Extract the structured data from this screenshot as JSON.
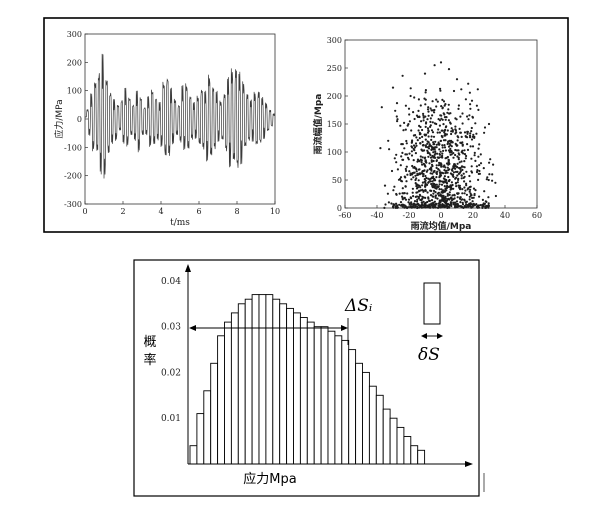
{
  "colors": {
    "frame": "#000000",
    "signal": "#3a3a3a",
    "points": "#1e1e1e",
    "bar_fill": "#ffffff",
    "bar_stroke": "#000000"
  },
  "chart_data": [
    {
      "type": "line",
      "title": "",
      "xlabel": "t/ms",
      "ylabel": "应力/MPa",
      "xlim": [
        0,
        10
      ],
      "ylim": [
        -300,
        300
      ],
      "xticks": [
        "0",
        "2",
        "4",
        "6",
        "8",
        "10"
      ],
      "yticks": [
        "300",
        "200",
        "100",
        "0",
        "-100",
        "-200",
        "-300"
      ],
      "series": [
        {
          "values_note_free": true,
          "x": [
            0.0,
            0.1,
            0.2,
            0.3,
            0.4,
            0.5,
            0.6,
            0.7,
            0.8,
            0.9,
            1.0,
            1.1,
            1.2,
            1.3,
            1.4,
            1.5,
            1.6,
            1.7,
            1.8,
            1.9,
            2.0,
            2.1,
            2.2,
            2.3,
            2.4,
            2.5,
            2.6,
            2.7,
            2.8,
            2.9,
            3.0,
            3.1,
            3.2,
            3.3,
            3.4,
            3.5,
            3.6,
            3.7,
            3.8,
            3.9,
            4.0,
            4.1,
            4.2,
            4.3,
            4.4,
            4.5,
            4.6,
            4.7,
            4.8,
            4.9,
            5.0,
            5.1,
            5.2,
            5.3,
            5.4,
            5.5,
            5.6,
            5.7,
            5.8,
            5.9,
            6.0,
            6.1,
            6.2,
            6.3,
            6.4,
            6.5,
            6.6,
            6.7,
            6.8,
            6.9,
            7.0,
            7.1,
            7.2,
            7.3,
            7.4,
            7.5,
            7.6,
            7.7,
            7.8,
            7.9,
            8.0,
            8.1,
            8.2,
            8.3,
            8.4,
            8.5,
            8.6,
            8.7,
            8.8,
            8.9,
            9.0,
            9.1,
            9.2,
            9.3,
            9.4,
            9.5,
            9.6,
            9.7,
            9.8,
            9.9
          ],
          "y": [
            10,
            40,
            -60,
            90,
            -120,
            160,
            -140,
            190,
            -200,
            230,
            -220,
            170,
            -150,
            110,
            -90,
            70,
            -80,
            60,
            -50,
            80,
            -90,
            110,
            -100,
            90,
            -70,
            60,
            -80,
            100,
            -120,
            90,
            -70,
            50,
            -60,
            80,
            -100,
            120,
            -110,
            90,
            -80,
            60,
            -100,
            150,
            -160,
            180,
            -140,
            110,
            -90,
            80,
            -70,
            60,
            -90,
            120,
            -110,
            140,
            -130,
            100,
            -80,
            60,
            -70,
            90,
            -110,
            130,
            -120,
            100,
            -150,
            170,
            -160,
            140,
            -120,
            100,
            -80,
            70,
            -90,
            110,
            -130,
            150,
            -170,
            190,
            -180,
            220,
            -200,
            170,
            -160,
            140,
            -120,
            110,
            -90,
            70,
            -80,
            100,
            -110,
            120,
            -100,
            80,
            -70,
            60,
            -50,
            40,
            -30,
            20
          ]
        }
      ]
    },
    {
      "type": "scatter",
      "title": "",
      "xlabel": "雨流均值/Mpa",
      "ylabel": "雨流幅值/Mpa",
      "xlim": [
        -60,
        60
      ],
      "ylim": [
        0,
        300
      ],
      "xticks": [
        "-60",
        "-40",
        "-20",
        "0",
        "20",
        "40",
        "60"
      ],
      "yticks": [
        "300",
        "250",
        "200",
        "150",
        "100",
        "50",
        "0"
      ],
      "series": [
        {
          "distribution": "approximately centered near x = 0 with spread about ±30, y mostly 0–200 with scattered outliers up to ~270",
          "points_sample": [
            [
              -37,
              180
            ],
            [
              -30,
              215
            ],
            [
              -24,
              236
            ],
            [
              -19,
              200
            ],
            [
              -10,
              240
            ],
            [
              -4,
              255
            ],
            [
              0,
              260
            ],
            [
              5,
              248
            ],
            [
              10,
              230
            ],
            [
              17,
              222
            ],
            [
              23,
              212
            ],
            [
              30,
              150
            ],
            [
              -33,
              120
            ],
            [
              -28,
              95
            ],
            [
              -22,
              140
            ],
            [
              -15,
              165
            ],
            [
              -8,
              180
            ],
            [
              -2,
              190
            ],
            [
              4,
              170
            ],
            [
              9,
              160
            ],
            [
              15,
              135
            ],
            [
              20,
              110
            ],
            [
              25,
              80
            ],
            [
              32,
              60
            ],
            [
              -35,
              40
            ],
            [
              -28,
              25
            ],
            [
              -20,
              15
            ],
            [
              -12,
              10
            ],
            [
              -5,
              6
            ],
            [
              3,
              8
            ],
            [
              10,
              12
            ],
            [
              18,
              20
            ],
            [
              27,
              30
            ],
            [
              34,
              45
            ],
            [
              -18,
              60
            ],
            [
              -12,
              85
            ],
            [
              -6,
              110
            ],
            [
              0,
              120
            ],
            [
              6,
              95
            ],
            [
              12,
              70
            ],
            [
              -25,
              55
            ],
            [
              -18,
              75
            ],
            [
              -10,
              130
            ],
            [
              -3,
              150
            ],
            [
              2,
              135
            ],
            [
              7,
              118
            ],
            [
              13,
              100
            ],
            [
              19,
              88
            ],
            [
              24,
              66
            ],
            [
              -15,
              35
            ],
            [
              -8,
              45
            ],
            [
              -1,
              55
            ],
            [
              5,
              48
            ],
            [
              11,
              40
            ],
            [
              17,
              35
            ],
            [
              21,
              25
            ],
            [
              28,
              12
            ],
            [
              -31,
              8
            ],
            [
              -24,
              5
            ],
            [
              -16,
              3
            ]
          ]
        }
      ]
    },
    {
      "type": "bar",
      "title": "",
      "xlabel": "应力Mpa",
      "ylabel": "概\n率",
      "ylim": [
        0,
        0.045
      ],
      "yticks": [
        "0.04",
        "0.03",
        "0.02",
        "0.01"
      ],
      "annotations": [
        "ΔSᵢ",
        "δS"
      ],
      "values": [
        0.004,
        0.011,
        0.016,
        0.022,
        0.028,
        0.031,
        0.033,
        0.035,
        0.036,
        0.037,
        0.037,
        0.037,
        0.036,
        0.035,
        0.034,
        0.033,
        0.032,
        0.031,
        0.03,
        0.03,
        0.029,
        0.028,
        0.027,
        0.025,
        0.022,
        0.02,
        0.017,
        0.015,
        0.012,
        0.01,
        0.008,
        0.006,
        0.004,
        0.003
      ]
    }
  ]
}
